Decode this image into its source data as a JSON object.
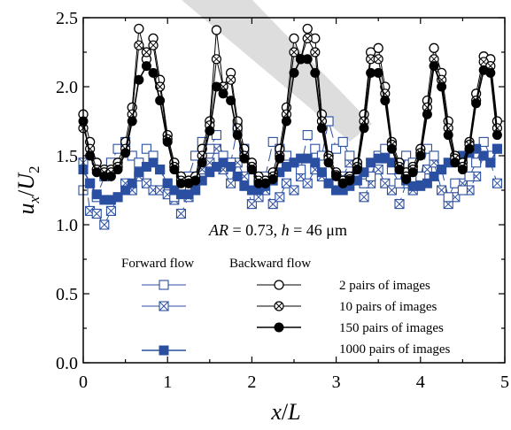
{
  "chart_data": {
    "type": "line",
    "xlim": [
      0,
      5
    ],
    "ylim": [
      0.0,
      2.5
    ],
    "xticks": [
      "0",
      "1",
      "2",
      "3",
      "4",
      "5"
    ],
    "yticks": [
      "0.0",
      "0.5",
      "1.0",
      "1.5",
      "2.0",
      "2.5"
    ],
    "xlabel": "x/L",
    "ylabel": "ux/U2",
    "annotation": "AR = 0.73, h = 46 μm",
    "grid": false,
    "legend_headers": {
      "forward": "Forward flow",
      "backward": "Backward flow"
    },
    "legend_labels": [
      "2 pairs of images",
      "10 pairs of images",
      "150 pairs of images",
      "1000 pairs of images"
    ],
    "colors": {
      "forward": "#2b4fa0",
      "backward": "#000000"
    },
    "x": [
      0.0,
      0.08,
      0.16,
      0.25,
      0.33,
      0.41,
      0.5,
      0.58,
      0.66,
      0.75,
      0.83,
      0.91,
      1.0,
      1.08,
      1.16,
      1.25,
      1.33,
      1.41,
      1.5,
      1.58,
      1.66,
      1.75,
      1.83,
      1.91,
      2.0,
      2.08,
      2.16,
      2.25,
      2.33,
      2.41,
      2.5,
      2.58,
      2.66,
      2.75,
      2.83,
      2.91,
      3.0,
      3.08,
      3.16,
      3.25,
      3.33,
      3.41,
      3.5,
      3.58,
      3.66,
      3.75,
      3.83,
      3.91,
      4.0,
      4.08,
      4.16,
      4.25,
      4.33,
      4.41,
      4.5,
      4.58,
      4.66,
      4.75,
      4.83,
      4.91
    ],
    "series": [
      {
        "name": "Backward flow: 2 pairs of images",
        "flow": "backward",
        "marker": "open-circle",
        "values": [
          1.8,
          1.6,
          1.45,
          1.4,
          1.4,
          1.45,
          1.6,
          1.85,
          2.42,
          2.2,
          2.35,
          2.05,
          1.65,
          1.45,
          1.35,
          1.32,
          1.35,
          1.55,
          1.75,
          2.41,
          2.0,
          2.1,
          1.75,
          1.55,
          1.45,
          1.35,
          1.32,
          1.38,
          1.55,
          1.85,
          2.35,
          2.2,
          2.42,
          2.35,
          1.8,
          1.5,
          1.38,
          1.32,
          1.35,
          1.45,
          1.8,
          2.25,
          2.28,
          2.0,
          1.6,
          1.45,
          1.38,
          1.42,
          1.55,
          1.9,
          2.28,
          2.1,
          1.75,
          1.5,
          1.45,
          1.6,
          1.95,
          2.22,
          2.2,
          1.75
        ]
      },
      {
        "name": "Backward flow: 10 pairs of images",
        "flow": "backward",
        "marker": "crossed-circle",
        "values": [
          1.7,
          1.55,
          1.4,
          1.38,
          1.38,
          1.42,
          1.55,
          1.8,
          2.3,
          2.25,
          2.3,
          2.0,
          1.62,
          1.42,
          1.32,
          1.3,
          1.32,
          1.5,
          1.72,
          2.2,
          2.0,
          2.05,
          1.7,
          1.5,
          1.42,
          1.32,
          1.3,
          1.35,
          1.5,
          1.8,
          2.25,
          2.2,
          2.35,
          2.25,
          1.75,
          1.48,
          1.36,
          1.3,
          1.33,
          1.42,
          1.75,
          2.2,
          2.2,
          1.95,
          1.58,
          1.42,
          1.35,
          1.4,
          1.52,
          1.85,
          2.2,
          2.05,
          1.7,
          1.48,
          1.42,
          1.58,
          1.9,
          2.18,
          2.15,
          1.7
        ]
      },
      {
        "name": "Backward flow: 150 pairs of images",
        "flow": "backward",
        "marker": "filled-circle",
        "values": [
          1.75,
          1.5,
          1.38,
          1.35,
          1.35,
          1.4,
          1.52,
          1.75,
          2.05,
          2.15,
          2.1,
          1.9,
          1.6,
          1.4,
          1.3,
          1.3,
          1.32,
          1.45,
          1.68,
          2.0,
          1.95,
          1.9,
          1.65,
          1.48,
          1.4,
          1.3,
          1.3,
          1.33,
          1.48,
          1.75,
          2.1,
          2.2,
          2.2,
          2.1,
          1.7,
          1.45,
          1.35,
          1.3,
          1.32,
          1.4,
          1.7,
          2.1,
          2.1,
          1.9,
          1.55,
          1.4,
          1.33,
          1.38,
          1.5,
          1.8,
          2.15,
          2.0,
          1.65,
          1.45,
          1.4,
          1.55,
          1.88,
          2.12,
          2.1,
          1.65
        ]
      },
      {
        "name": "Forward flow: 2 pairs of images",
        "flow": "forward",
        "marker": "open-square",
        "values": [
          1.25,
          1.3,
          1.2,
          1.35,
          1.45,
          1.55,
          1.6,
          1.5,
          1.45,
          1.55,
          1.5,
          1.4,
          1.3,
          1.2,
          1.25,
          1.35,
          1.5,
          1.6,
          1.55,
          1.65,
          1.5,
          1.45,
          1.7,
          1.55,
          1.4,
          1.3,
          1.35,
          1.6,
          1.55,
          1.5,
          1.45,
          1.4,
          1.65,
          1.55,
          1.5,
          1.75,
          1.55,
          1.6,
          1.5,
          1.4,
          1.3,
          1.35,
          1.5,
          1.55,
          1.4,
          1.3,
          1.5,
          1.45,
          1.35,
          1.55,
          1.5,
          1.4,
          1.2,
          1.3,
          1.25,
          1.35,
          1.45,
          1.6,
          1.5,
          1.55
        ]
      },
      {
        "name": "Forward flow: 10 pairs of images",
        "flow": "forward",
        "marker": "crossed-square",
        "values": [
          1.45,
          1.1,
          1.08,
          1.0,
          1.1,
          1.2,
          1.3,
          1.25,
          1.35,
          1.3,
          1.25,
          1.25,
          1.22,
          1.18,
          1.08,
          1.2,
          1.25,
          1.4,
          1.45,
          1.55,
          1.4,
          1.3,
          1.45,
          1.35,
          1.15,
          1.2,
          1.25,
          1.15,
          1.2,
          1.3,
          1.25,
          1.35,
          1.3,
          1.4,
          1.35,
          1.3,
          1.25,
          1.35,
          1.45,
          1.4,
          1.2,
          1.3,
          1.4,
          1.3,
          1.25,
          1.15,
          1.3,
          1.25,
          1.3,
          1.4,
          1.45,
          1.25,
          1.15,
          1.2,
          1.3,
          1.25,
          1.35,
          1.5,
          1.45,
          1.3
        ]
      },
      {
        "name": "Forward flow: 1000 pairs of images",
        "flow": "forward",
        "marker": "filled-square",
        "values": [
          1.4,
          1.3,
          1.22,
          1.18,
          1.18,
          1.2,
          1.25,
          1.3,
          1.38,
          1.42,
          1.45,
          1.4,
          1.3,
          1.25,
          1.22,
          1.22,
          1.25,
          1.32,
          1.38,
          1.42,
          1.45,
          1.42,
          1.35,
          1.28,
          1.25,
          1.25,
          1.28,
          1.32,
          1.38,
          1.42,
          1.45,
          1.48,
          1.48,
          1.45,
          1.38,
          1.3,
          1.25,
          1.25,
          1.28,
          1.32,
          1.38,
          1.45,
          1.48,
          1.48,
          1.45,
          1.4,
          1.32,
          1.28,
          1.28,
          1.3,
          1.35,
          1.4,
          1.45,
          1.48,
          1.5,
          1.52,
          1.55,
          1.5,
          1.45,
          1.55
        ]
      }
    ]
  }
}
